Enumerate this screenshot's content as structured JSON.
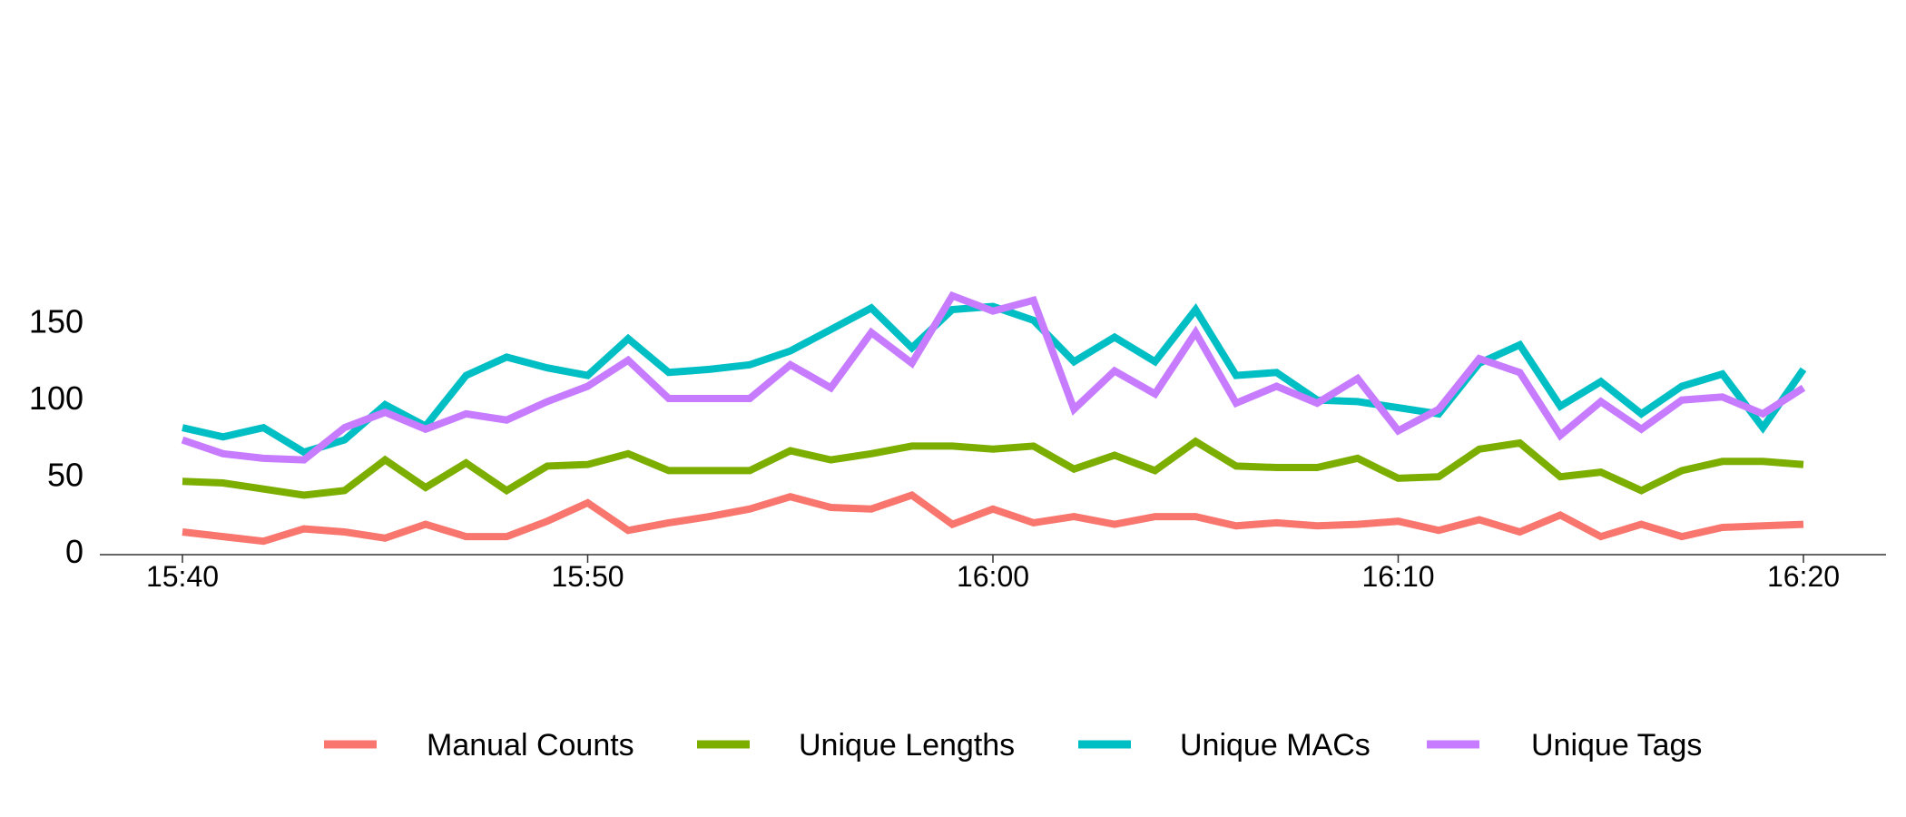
{
  "chart_data": {
    "type": "line",
    "title": "",
    "xlabel": "",
    "ylabel": "",
    "x": [
      "15:40",
      "15:41",
      "15:42",
      "15:43",
      "15:44",
      "15:45",
      "15:46",
      "15:47",
      "15:48",
      "15:49",
      "15:50",
      "15:51",
      "15:52",
      "15:53",
      "15:54",
      "15:55",
      "15:56",
      "15:57",
      "15:58",
      "15:59",
      "16:00",
      "16:01",
      "16:02",
      "16:03",
      "16:04",
      "16:05",
      "16:06",
      "16:07",
      "16:08",
      "16:09",
      "16:10",
      "16:11",
      "16:12",
      "16:13",
      "16:14",
      "16:15",
      "16:16",
      "16:17",
      "16:18",
      "16:19",
      "16:20"
    ],
    "x_ticks": [
      "15:40",
      "15:50",
      "16:00",
      "16:10",
      "16:20"
    ],
    "y_ticks": [
      0,
      50,
      100,
      150
    ],
    "ylim": [
      0,
      168
    ],
    "grid": false,
    "legend_position": "bottom",
    "series": [
      {
        "name": "Manual Counts",
        "color": "#F8766D",
        "values": [
          13,
          10,
          7,
          15,
          13,
          9,
          18,
          10,
          10,
          20,
          32,
          14,
          19,
          23,
          28,
          36,
          29,
          28,
          37,
          18,
          28,
          19,
          23,
          18,
          23,
          23,
          17,
          19,
          17,
          18,
          20,
          14,
          21,
          13,
          24,
          10,
          18,
          10,
          16,
          17,
          18
        ]
      },
      {
        "name": "Unique Lengths",
        "color": "#7CAE00",
        "values": [
          46,
          45,
          41,
          37,
          40,
          60,
          42,
          58,
          40,
          56,
          57,
          64,
          53,
          53,
          53,
          66,
          60,
          64,
          69,
          69,
          67,
          69,
          54,
          63,
          53,
          72,
          56,
          55,
          55,
          61,
          48,
          49,
          67,
          71,
          49,
          52,
          40,
          53,
          59,
          59,
          57
        ]
      },
      {
        "name": "Unique MACs",
        "color": "#00BFC4",
        "values": [
          81,
          75,
          81,
          65,
          73,
          96,
          82,
          115,
          127,
          120,
          115,
          139,
          117,
          119,
          122,
          131,
          145,
          159,
          133,
          158,
          160,
          151,
          124,
          140,
          124,
          158,
          115,
          117,
          99,
          98,
          94,
          90,
          123,
          135,
          95,
          111,
          90,
          108,
          116,
          81,
          119
        ]
      },
      {
        "name": "Unique Tags",
        "color": "#C77CFF",
        "values": [
          73,
          64,
          61,
          60,
          81,
          91,
          80,
          90,
          86,
          98,
          108,
          125,
          100,
          100,
          100,
          122,
          107,
          143,
          123,
          167,
          157,
          164,
          93,
          118,
          103,
          143,
          97,
          108,
          97,
          113,
          79,
          93,
          126,
          117,
          76,
          98,
          80,
          99,
          101,
          90,
          107
        ]
      }
    ]
  }
}
